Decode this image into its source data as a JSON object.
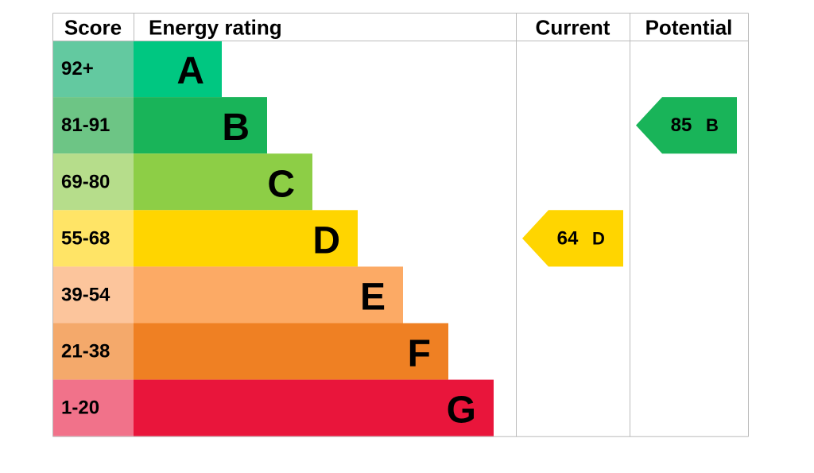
{
  "headers": {
    "score": "Score",
    "rating": "Energy rating",
    "current": "Current",
    "potential": "Potential"
  },
  "bands": [
    {
      "score": "92+",
      "letter": "A",
      "color": "#00c781",
      "score_color": "#63c9a0"
    },
    {
      "score": "81-91",
      "letter": "B",
      "color": "#19b459",
      "score_color": "#6dc585"
    },
    {
      "score": "69-80",
      "letter": "C",
      "color": "#8dce46",
      "score_color": "#b6dd8b"
    },
    {
      "score": "55-68",
      "letter": "D",
      "color": "#ffd500",
      "score_color": "#ffe466"
    },
    {
      "score": "39-54",
      "letter": "E",
      "color": "#fcaa65",
      "score_color": "#fcc59c"
    },
    {
      "score": "21-38",
      "letter": "F",
      "color": "#ef8023",
      "score_color": "#f4a96b"
    },
    {
      "score": "1-20",
      "letter": "G",
      "color": "#e9153b",
      "score_color": "#f1728a"
    }
  ],
  "current": {
    "value": 64,
    "letter": "D"
  },
  "potential": {
    "value": 85,
    "letter": "B"
  }
}
